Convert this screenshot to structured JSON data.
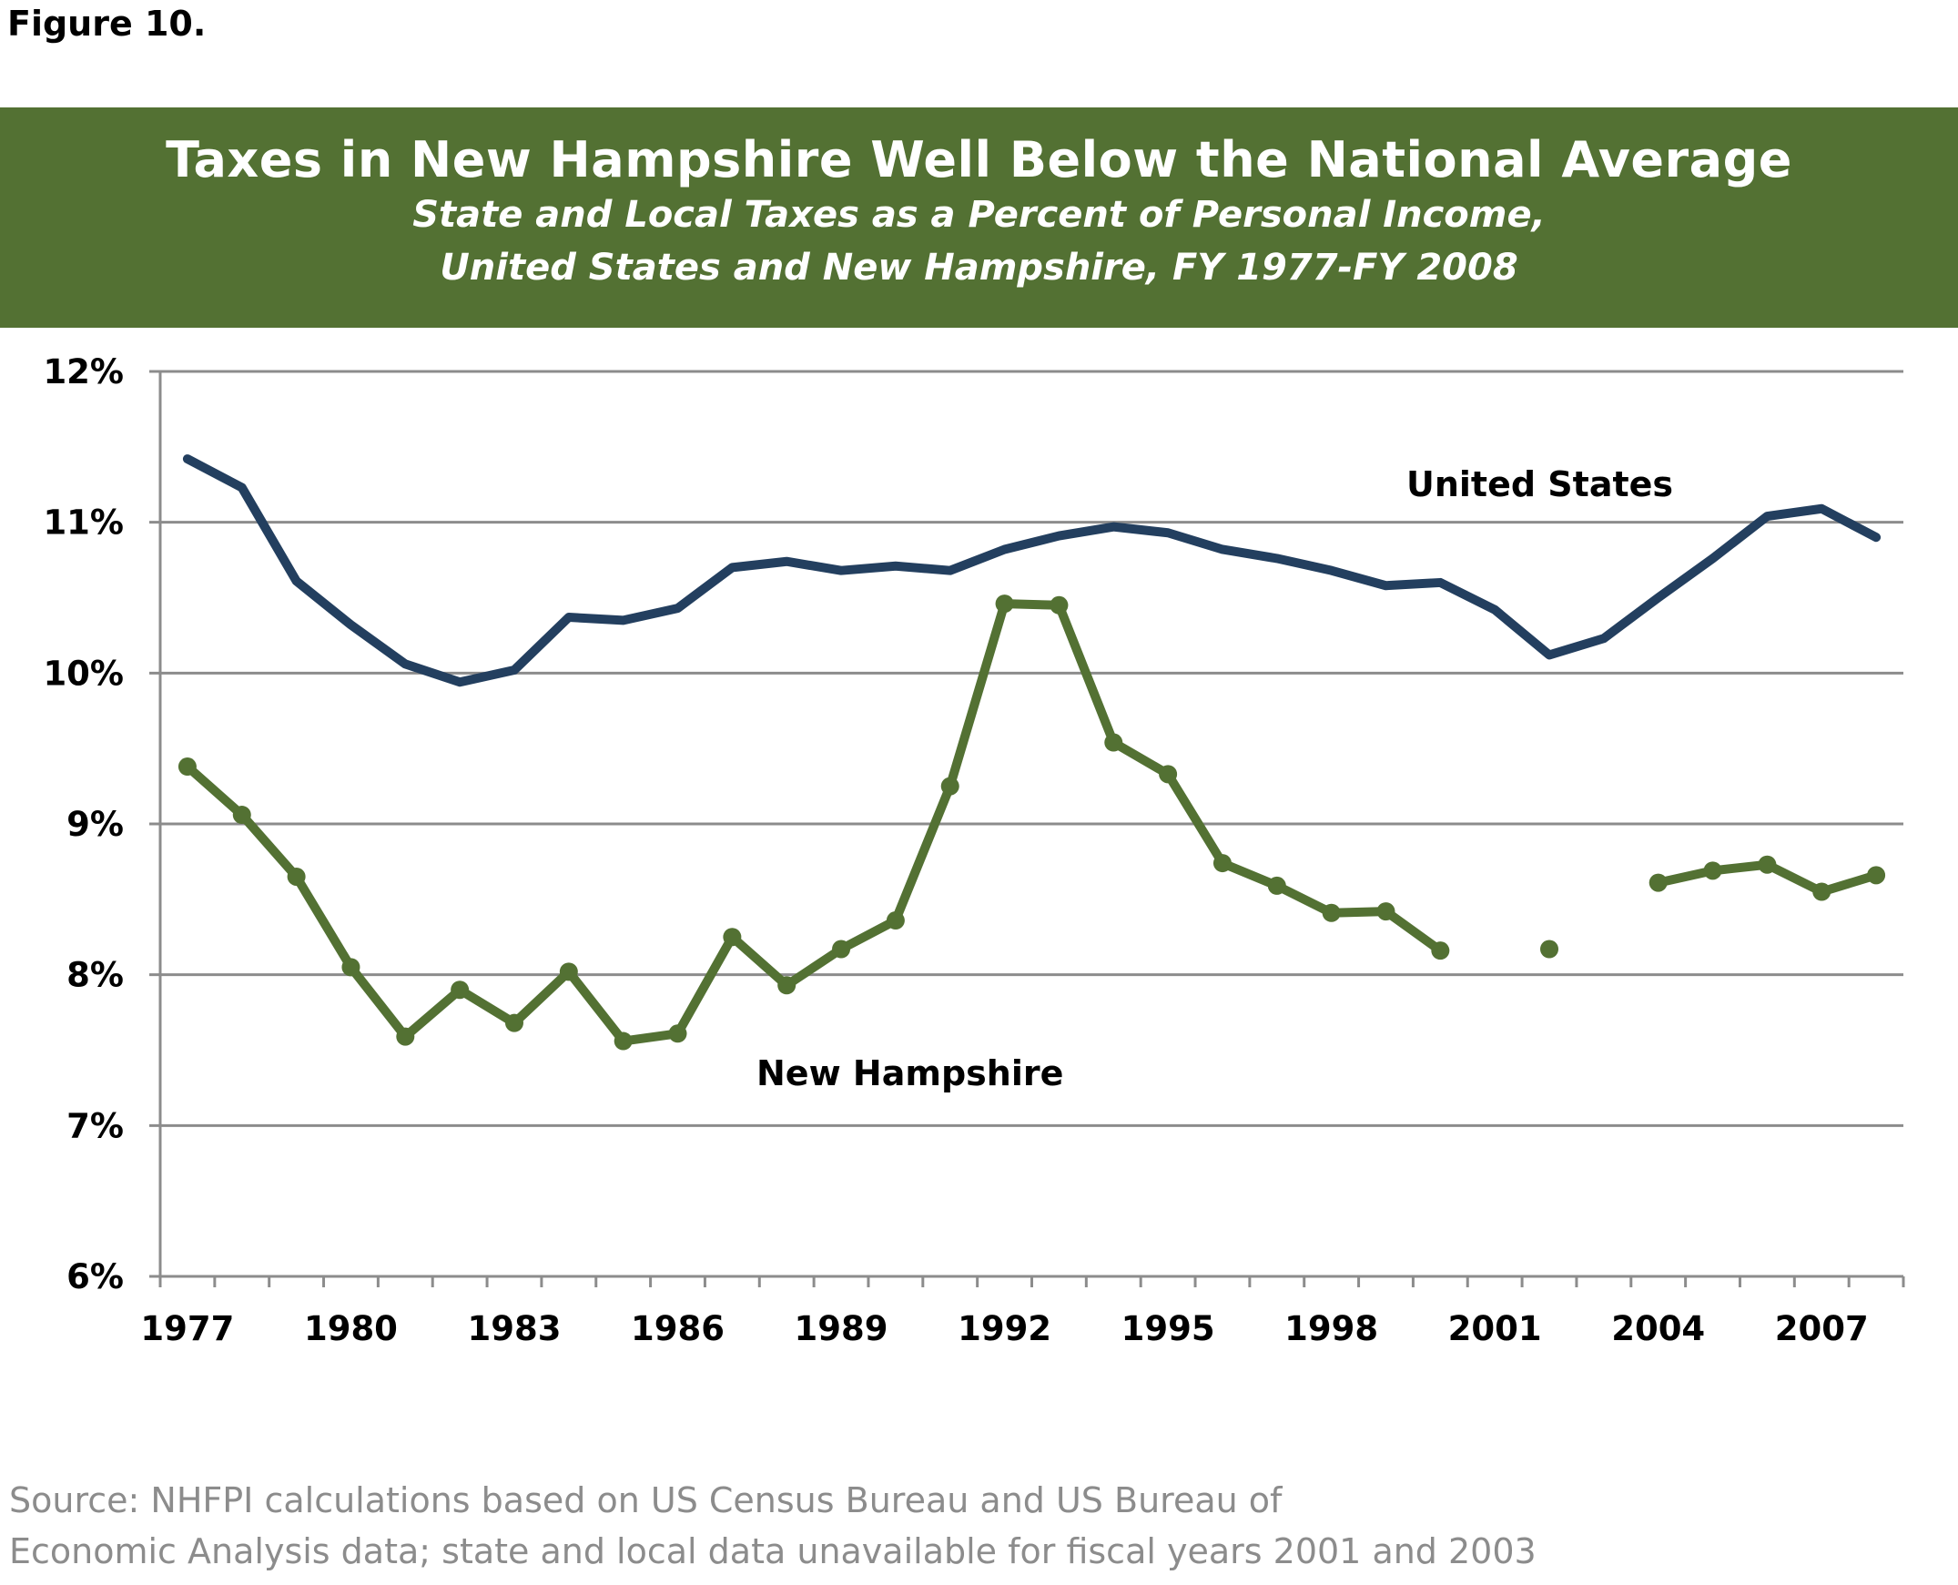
{
  "figure_label": "Figure 10.",
  "source_lines": [
    "Source:  NHFPI calculations based on US Census Bureau and US Bureau of",
    "Economic Analysis data; state and local data unavailable for fiscal years 2001 and 2003"
  ],
  "colors": {
    "banner": "#537133",
    "us": "#233f5f",
    "nh": "#537133",
    "grid": "#8c8c8c"
  },
  "chart_data": {
    "type": "line",
    "title": "Taxes in New Hampshire Well Below the National Average",
    "subtitle_lines": [
      "State and Local Taxes as a Percent of Personal Income,",
      "United States and New Hampshire, FY 1977-FY 2008"
    ],
    "x": [
      1977,
      1978,
      1979,
      1980,
      1981,
      1982,
      1983,
      1984,
      1985,
      1986,
      1987,
      1988,
      1989,
      1990,
      1991,
      1992,
      1993,
      1994,
      1995,
      1996,
      1997,
      1998,
      1999,
      2000,
      2001,
      2002,
      2003,
      2004,
      2005,
      2006,
      2007,
      2008
    ],
    "x_tick_labels": [
      "1977",
      "1980",
      "1983",
      "1986",
      "1989",
      "1992",
      "1995",
      "1998",
      "2001",
      "2004",
      "2007"
    ],
    "y_tick_labels": [
      "6%",
      "7%",
      "8%",
      "9%",
      "10%",
      "11%",
      "12%"
    ],
    "ylim": [
      6,
      12
    ],
    "grid": true,
    "series": [
      {
        "name": "United States",
        "markers": false,
        "values": [
          11.42,
          11.23,
          10.61,
          10.32,
          10.06,
          9.94,
          10.02,
          10.37,
          10.35,
          10.43,
          10.7,
          10.74,
          10.68,
          10.71,
          10.68,
          10.82,
          10.91,
          10.97,
          10.93,
          10.82,
          10.76,
          10.68,
          10.58,
          10.6,
          10.42,
          10.12,
          10.23,
          10.5,
          10.76,
          11.04,
          11.09,
          10.9
        ]
      },
      {
        "name": "New Hampshire",
        "markers": true,
        "values": [
          9.38,
          9.06,
          8.65,
          8.05,
          7.59,
          7.9,
          7.68,
          8.02,
          7.56,
          7.61,
          8.25,
          7.93,
          8.17,
          8.36,
          9.25,
          10.46,
          10.45,
          9.54,
          9.33,
          8.74,
          8.59,
          8.41,
          8.42,
          8.16,
          null,
          8.17,
          null,
          8.61,
          8.69,
          8.73,
          8.55,
          8.66
        ]
      }
    ]
  }
}
